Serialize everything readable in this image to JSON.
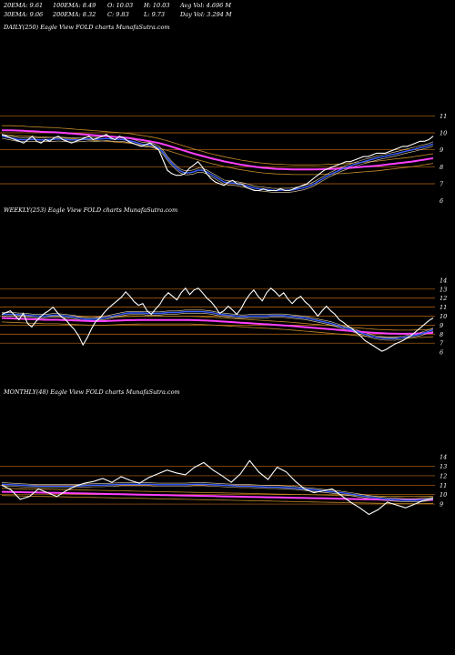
{
  "header": {
    "row1": [
      {
        "label": "20EMA: 9.61"
      },
      {
        "label": "100EMA: 8.49"
      },
      {
        "label": "O: 10.03"
      },
      {
        "label": "H: 10.03"
      },
      {
        "label": "Avg Vol: 4.696  M"
      }
    ],
    "row2": [
      {
        "label": "30EMA: 9.06"
      },
      {
        "label": "200EMA: 8.32"
      },
      {
        "label": "C: 9.83"
      },
      {
        "label": "L: 9.73"
      },
      {
        "label": "Day Vol: 3.294  M"
      }
    ]
  },
  "colors": {
    "price": "#ffffff",
    "ema_fast": "#3a5fff",
    "ema_slow": "#ff40ff",
    "band": "#c48a2a",
    "ma_thin": "#e8d8b0",
    "grid": "#c06a10"
  },
  "chart_data": [
    {
      "type": "line",
      "panel_label": "DAILY(250) Eagle  View  FOLD charts MunafaSutra.com",
      "ylim": [
        5.5,
        11.5
      ],
      "yticks": [
        11,
        10,
        9,
        8,
        7,
        6
      ],
      "grid_levels": [
        11,
        10,
        9,
        8,
        7
      ],
      "x_count": 250,
      "series": [
        {
          "role": "price",
          "values": [
            9.9,
            9.8,
            9.7,
            9.6,
            9.5,
            9.4,
            9.6,
            9.8,
            9.5,
            9.4,
            9.6,
            9.5,
            9.7,
            9.8,
            9.6,
            9.5,
            9.4,
            9.5,
            9.6,
            9.7,
            9.8,
            9.6,
            9.7,
            9.8,
            9.9,
            9.7,
            9.6,
            9.8,
            9.7,
            9.5,
            9.4,
            9.3,
            9.2,
            9.3,
            9.4,
            9.2,
            9.0,
            8.4,
            7.8,
            7.6,
            7.5,
            7.5,
            7.6,
            7.9,
            8.1,
            8.3,
            8.0,
            7.6,
            7.3,
            7.1,
            7.0,
            6.9,
            7.1,
            7.2,
            7.0,
            7.0,
            6.8,
            6.7,
            6.6,
            6.6,
            6.7,
            6.6,
            6.6,
            6.6,
            6.7,
            6.6,
            6.6,
            6.7,
            6.8,
            6.9,
            7.0,
            7.2,
            7.4,
            7.6,
            7.8,
            7.9,
            8.0,
            8.1,
            8.2,
            8.3,
            8.3,
            8.4,
            8.5,
            8.6,
            8.6,
            8.7,
            8.8,
            8.8,
            8.8,
            8.9,
            9.0,
            9.1,
            9.2,
            9.2,
            9.3,
            9.4,
            9.5,
            9.5,
            9.6,
            9.8
          ]
        },
        {
          "role": "ema_fast",
          "values": [
            9.8,
            9.75,
            9.7,
            9.65,
            9.6,
            9.6,
            9.6,
            9.62,
            9.6,
            9.58,
            9.6,
            9.6,
            9.62,
            9.64,
            9.62,
            9.6,
            9.58,
            9.58,
            9.6,
            9.62,
            9.64,
            9.62,
            9.62,
            9.64,
            9.66,
            9.64,
            9.62,
            9.62,
            9.6,
            9.55,
            9.5,
            9.42,
            9.34,
            9.3,
            9.3,
            9.22,
            9.1,
            8.85,
            8.5,
            8.2,
            7.95,
            7.75,
            7.65,
            7.65,
            7.7,
            7.8,
            7.8,
            7.7,
            7.55,
            7.4,
            7.25,
            7.1,
            7.05,
            7.05,
            7.0,
            6.95,
            6.9,
            6.82,
            6.75,
            6.7,
            6.68,
            6.65,
            6.62,
            6.6,
            6.62,
            6.62,
            6.62,
            6.65,
            6.7,
            6.75,
            6.82,
            6.92,
            7.05,
            7.2,
            7.35,
            7.5,
            7.62,
            7.74,
            7.86,
            7.96,
            8.05,
            8.14,
            8.22,
            8.3,
            8.37,
            8.44,
            8.51,
            8.57,
            8.62,
            8.68,
            8.74,
            8.8,
            8.87,
            8.93,
            8.99,
            9.05,
            9.12,
            9.18,
            9.25,
            9.35
          ]
        },
        {
          "role": "ema_slow",
          "values": [
            10.15,
            10.15,
            10.15,
            10.14,
            10.13,
            10.12,
            10.1,
            10.09,
            10.08,
            10.06,
            10.05,
            10.04,
            10.03,
            10.02,
            10.0,
            9.98,
            9.96,
            9.94,
            9.92,
            9.9,
            9.88,
            9.86,
            9.84,
            9.82,
            9.8,
            9.78,
            9.76,
            9.74,
            9.72,
            9.7,
            9.66,
            9.62,
            9.58,
            9.54,
            9.5,
            9.45,
            9.4,
            9.33,
            9.26,
            9.18,
            9.1,
            9.02,
            8.94,
            8.86,
            8.78,
            8.71,
            8.64,
            8.57,
            8.5,
            8.44,
            8.38,
            8.32,
            8.27,
            8.22,
            8.17,
            8.12,
            8.08,
            8.04,
            8.0,
            7.97,
            7.94,
            7.92,
            7.9,
            7.88,
            7.87,
            7.86,
            7.85,
            7.84,
            7.84,
            7.84,
            7.84,
            7.84,
            7.84,
            7.85,
            7.86,
            7.87,
            7.88,
            7.89,
            7.9,
            7.92,
            7.94,
            7.96,
            7.98,
            8.0,
            8.02,
            8.04,
            8.06,
            8.09,
            8.12,
            8.15,
            8.18,
            8.21,
            8.24,
            8.27,
            8.3,
            8.34,
            8.38,
            8.42,
            8.46,
            8.5
          ]
        }
      ]
    },
    {
      "type": "line",
      "panel_label": "WEEKLY(253) Eagle  View  FOLD charts MunafaSutra.com",
      "ylim": [
        5.5,
        14.5
      ],
      "yticks": [
        14,
        13,
        12,
        11,
        10,
        9,
        8,
        7,
        6
      ],
      "grid_levels": [
        13,
        12,
        11,
        10,
        9,
        8,
        7
      ],
      "x_count": 253,
      "series": [
        {
          "role": "price",
          "values": [
            10.2,
            10.4,
            10.6,
            10.1,
            9.6,
            10.3,
            9.2,
            8.8,
            9.4,
            9.9,
            10.3,
            10.6,
            11.0,
            10.4,
            9.9,
            9.6,
            9.0,
            8.5,
            7.8,
            6.8,
            7.6,
            8.6,
            9.4,
            9.8,
            10.4,
            10.9,
            11.3,
            11.7,
            12.1,
            12.7,
            12.2,
            11.6,
            11.2,
            11.4,
            10.6,
            10.2,
            10.8,
            11.3,
            12.1,
            12.6,
            12.2,
            11.8,
            12.6,
            13.1,
            12.4,
            12.9,
            13.1,
            12.6,
            12.0,
            11.6,
            11.0,
            10.3,
            10.6,
            11.1,
            10.7,
            10.2,
            10.8,
            11.7,
            12.4,
            12.9,
            12.2,
            11.7,
            12.6,
            13.1,
            12.7,
            12.2,
            12.6,
            11.9,
            11.4,
            11.9,
            12.2,
            11.6,
            11.2,
            10.6,
            10.0,
            10.6,
            11.1,
            10.6,
            10.2,
            9.6,
            9.3,
            8.9,
            8.6,
            8.2,
            7.8,
            7.3,
            7.0,
            6.7,
            6.4,
            6.1,
            6.3,
            6.6,
            6.9,
            7.1,
            7.3,
            7.6,
            7.9,
            8.3,
            8.7,
            9.1,
            9.5,
            9.8
          ]
        },
        {
          "role": "ema_fast",
          "values": [
            10.2,
            10.2,
            10.2,
            10.2,
            10.15,
            10.15,
            10.1,
            10.05,
            10.0,
            10.0,
            10.0,
            10.05,
            10.1,
            10.1,
            10.05,
            10.0,
            9.95,
            9.9,
            9.8,
            9.7,
            9.65,
            9.65,
            9.7,
            9.75,
            9.8,
            9.9,
            10.0,
            10.1,
            10.2,
            10.3,
            10.35,
            10.35,
            10.35,
            10.35,
            10.3,
            10.3,
            10.3,
            10.3,
            10.35,
            10.4,
            10.4,
            10.4,
            10.45,
            10.5,
            10.5,
            10.5,
            10.5,
            10.5,
            10.45,
            10.4,
            10.3,
            10.2,
            10.15,
            10.1,
            10.05,
            10.0,
            9.95,
            9.95,
            10.0,
            10.0,
            10.0,
            10.0,
            10.0,
            10.05,
            10.05,
            10.05,
            10.05,
            10.0,
            9.95,
            9.9,
            9.85,
            9.8,
            9.7,
            9.6,
            9.5,
            9.4,
            9.3,
            9.2,
            9.05,
            8.9,
            8.75,
            8.6,
            8.45,
            8.3,
            8.15,
            8.0,
            7.85,
            7.7,
            7.6,
            7.55,
            7.5,
            7.5,
            7.5,
            7.55,
            7.6,
            7.7,
            7.8,
            7.9,
            8.0,
            8.15,
            8.3,
            8.5
          ]
        },
        {
          "role": "ema_slow",
          "values": [
            9.8,
            9.78,
            9.76,
            9.74,
            9.72,
            9.7,
            9.68,
            9.66,
            9.64,
            9.62,
            9.6,
            9.6,
            9.6,
            9.6,
            9.58,
            9.56,
            9.54,
            9.52,
            9.5,
            9.48,
            9.46,
            9.44,
            9.44,
            9.44,
            9.44,
            9.46,
            9.48,
            9.5,
            9.52,
            9.54,
            9.55,
            9.56,
            9.57,
            9.58,
            9.58,
            9.58,
            9.58,
            9.58,
            9.58,
            9.58,
            9.58,
            9.58,
            9.58,
            9.58,
            9.58,
            9.56,
            9.54,
            9.52,
            9.5,
            9.48,
            9.45,
            9.42,
            9.39,
            9.36,
            9.33,
            9.3,
            9.27,
            9.24,
            9.21,
            9.18,
            9.15,
            9.12,
            9.09,
            9.06,
            9.03,
            9.0,
            8.97,
            8.94,
            8.9,
            8.86,
            8.82,
            8.78,
            8.74,
            8.7,
            8.66,
            8.62,
            8.58,
            8.54,
            8.5,
            8.46,
            8.42,
            8.38,
            8.34,
            8.3,
            8.26,
            8.22,
            8.18,
            8.15,
            8.12,
            8.1,
            8.08,
            8.06,
            8.05,
            8.04,
            8.04,
            8.04,
            8.05,
            8.06,
            8.08,
            8.1,
            8.12,
            8.15
          ]
        }
      ]
    },
    {
      "type": "line",
      "panel_label": "MONTHLY(48) Eagle  View  FOLD charts MunafaSutra.com",
      "ylim": [
        6.5,
        14.5
      ],
      "yticks": [
        14,
        13,
        12,
        11,
        10,
        9
      ],
      "grid_levels": [
        13,
        12,
        11,
        10,
        9
      ],
      "x_count": 48,
      "series": [
        {
          "role": "price",
          "values": [
            11.0,
            10.5,
            9.5,
            9.8,
            10.6,
            10.2,
            9.8,
            10.4,
            10.9,
            11.2,
            11.4,
            11.7,
            11.3,
            11.9,
            11.5,
            11.2,
            11.8,
            12.2,
            12.6,
            12.3,
            12.1,
            12.9,
            13.4,
            12.6,
            12.0,
            11.3,
            12.2,
            13.6,
            12.4,
            11.6,
            12.9,
            12.4,
            11.4,
            10.6,
            10.2,
            10.4,
            10.6,
            9.9,
            9.2,
            8.6,
            7.9,
            8.4,
            9.2,
            8.9,
            8.6,
            9.0,
            9.4,
            9.6
          ]
        },
        {
          "role": "ema_fast",
          "values": [
            11.1,
            11.05,
            11.0,
            10.95,
            10.9,
            10.9,
            10.9,
            10.9,
            10.9,
            10.95,
            11.0,
            11.0,
            11.05,
            11.1,
            11.1,
            11.1,
            11.1,
            11.05,
            11.05,
            11.05,
            11.05,
            11.1,
            11.1,
            11.05,
            11.0,
            10.95,
            10.9,
            10.9,
            10.85,
            10.8,
            10.8,
            10.75,
            10.7,
            10.6,
            10.5,
            10.4,
            10.3,
            10.2,
            10.05,
            9.9,
            9.75,
            9.6,
            9.5,
            9.45,
            9.4,
            9.4,
            9.45,
            9.55
          ]
        },
        {
          "role": "ema_slow",
          "values": [
            10.3,
            10.28,
            10.26,
            10.24,
            10.22,
            10.2,
            10.18,
            10.16,
            10.14,
            10.12,
            10.1,
            10.08,
            10.06,
            10.04,
            10.02,
            10.0,
            9.98,
            9.96,
            9.94,
            9.92,
            9.9,
            9.88,
            9.86,
            9.84,
            9.82,
            9.8,
            9.78,
            9.76,
            9.74,
            9.72,
            9.7,
            9.68,
            9.66,
            9.64,
            9.62,
            9.6,
            9.58,
            9.56,
            9.54,
            9.52,
            9.5,
            9.48,
            9.46,
            9.45,
            9.44,
            9.44,
            9.45,
            9.47
          ]
        }
      ]
    }
  ]
}
